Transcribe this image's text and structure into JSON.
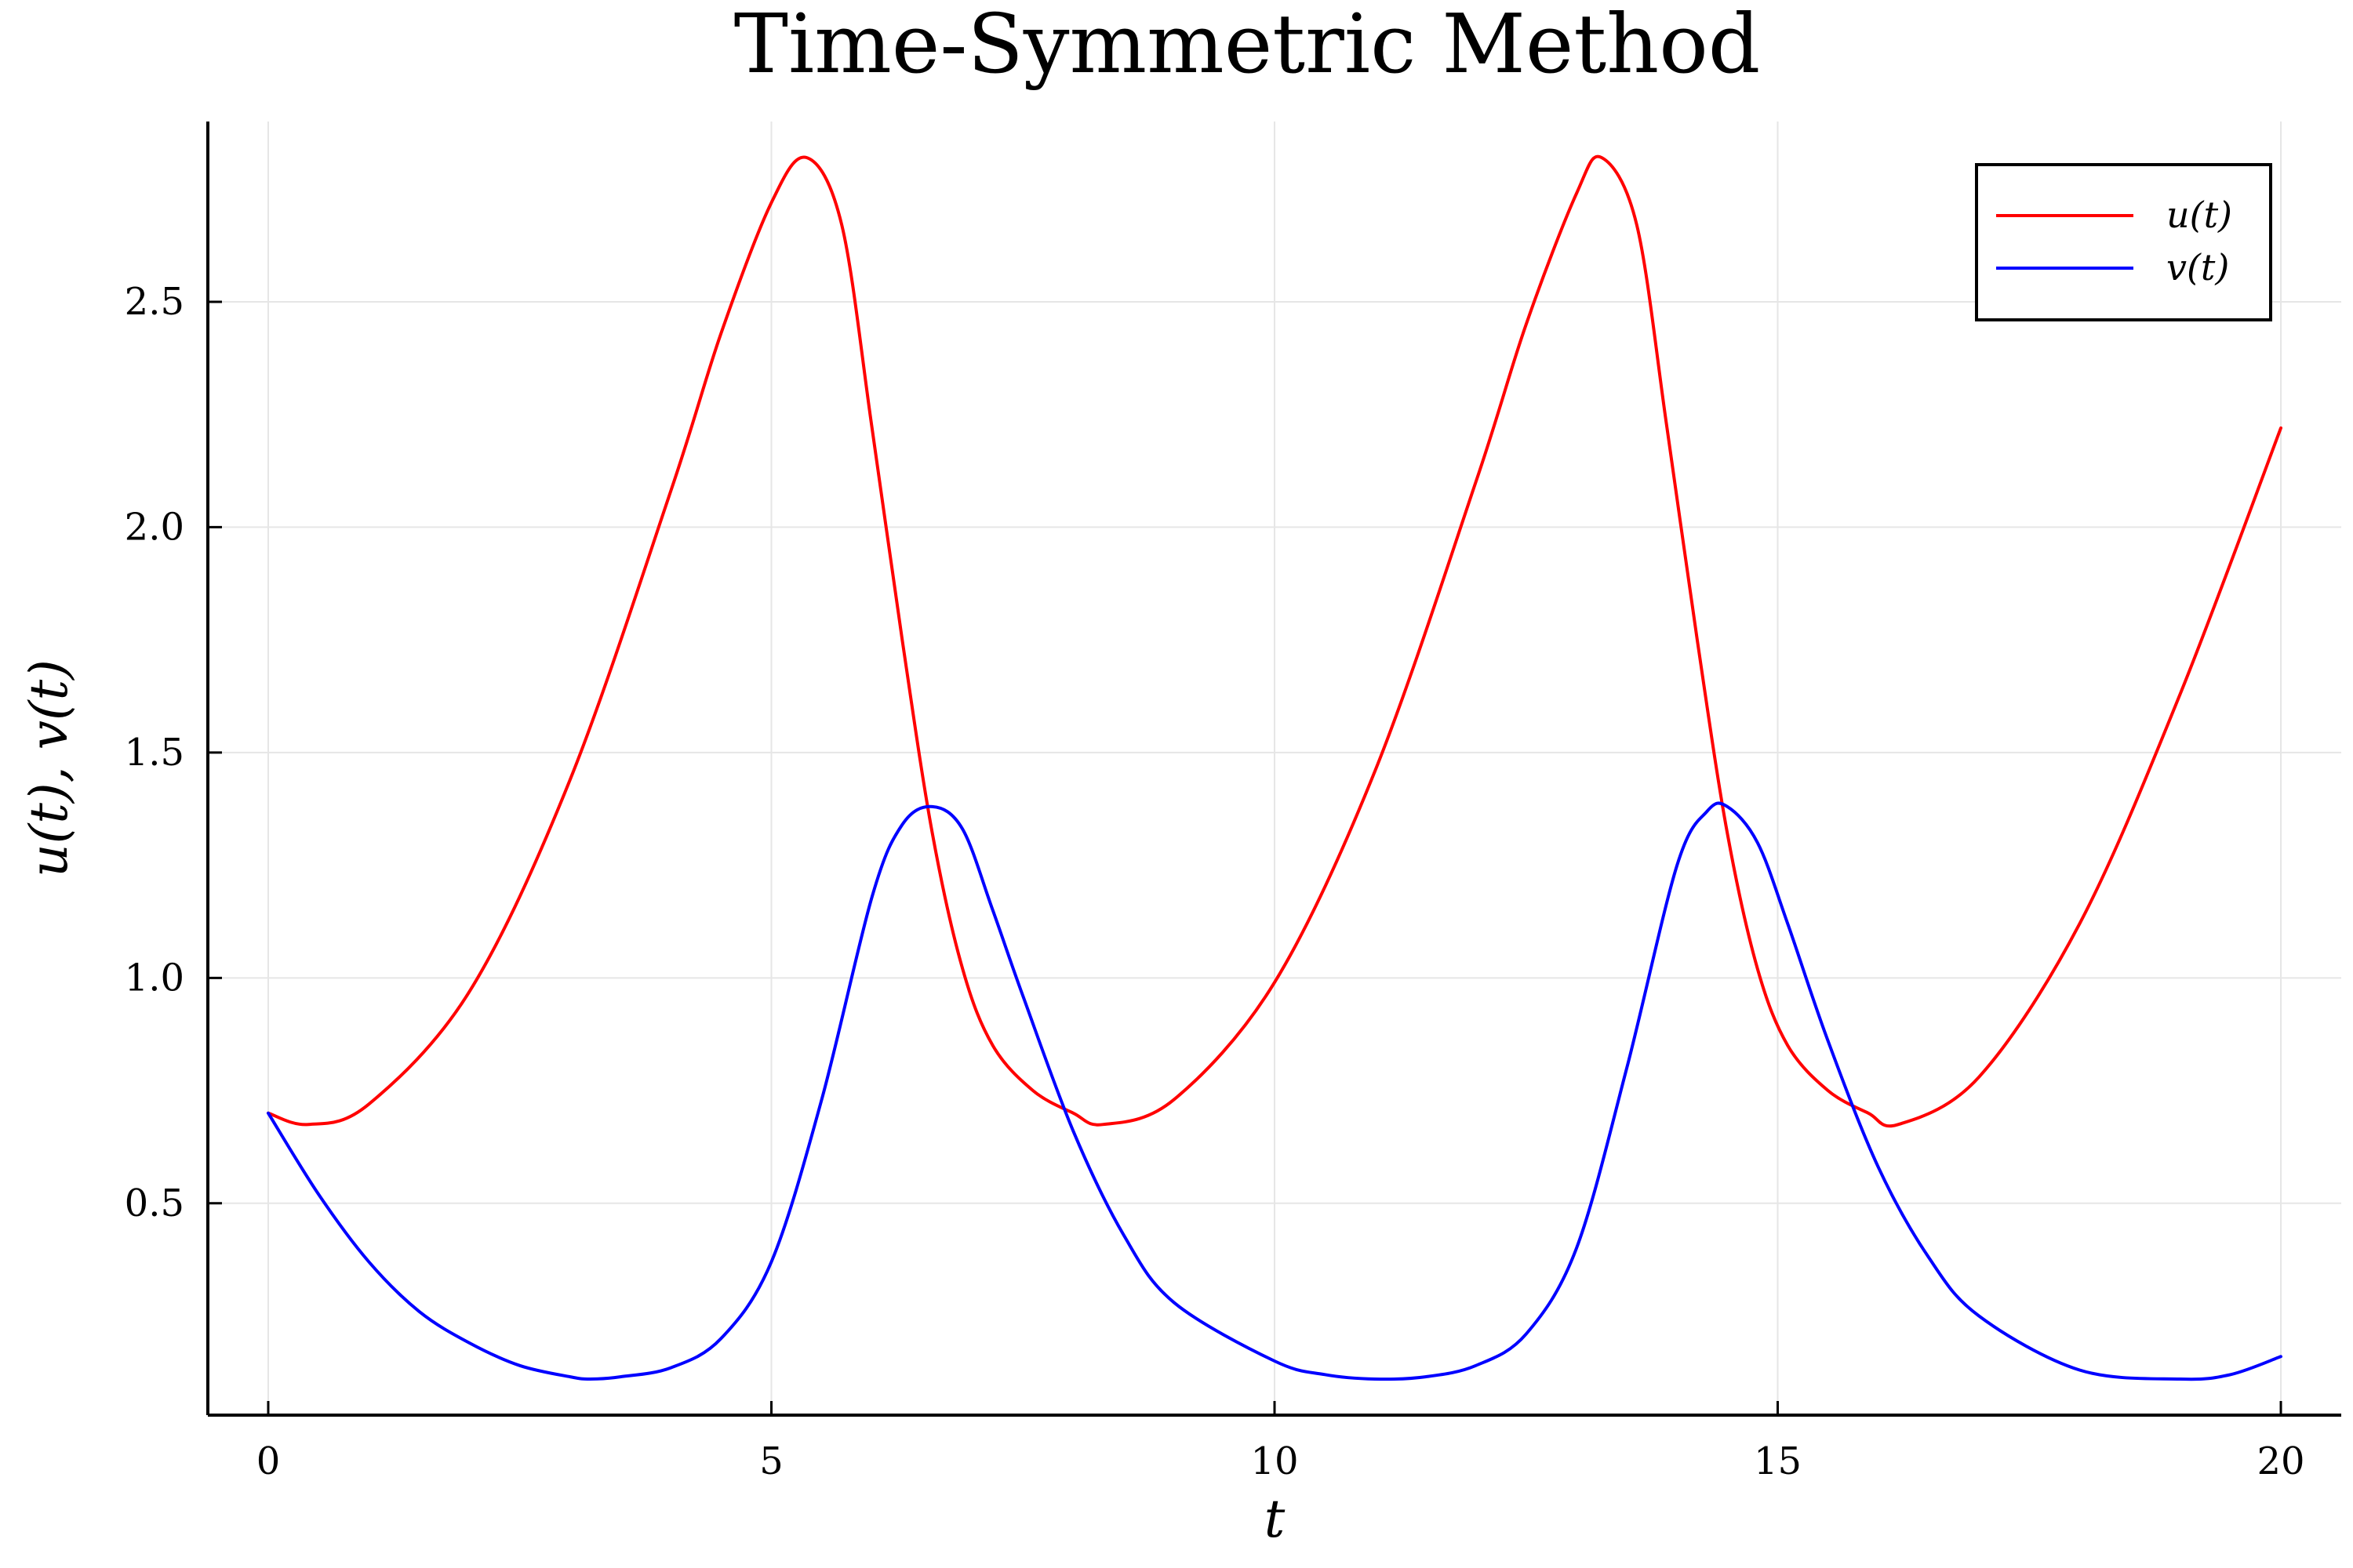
{
  "chart_data": {
    "type": "line",
    "title": "Time-Symmetric Method",
    "xlabel": "t",
    "ylabel": "u(t), v(t)",
    "xlim": [
      -0.6,
      20.6
    ],
    "ylim": [
      0.03,
      2.9
    ],
    "xticks": [
      0,
      5,
      10,
      15,
      20
    ],
    "xtick_labels": [
      "0",
      "5",
      "10",
      "15",
      "20"
    ],
    "yticks": [
      0.5,
      1.0,
      1.5,
      2.0,
      2.5
    ],
    "ytick_labels": [
      "0.5",
      "1.0",
      "1.5",
      "2.0",
      "2.5"
    ],
    "grid": true,
    "legend_position": "top-right",
    "series": [
      {
        "name": "u(t)",
        "color": "#ff0000",
        "x": [
          0,
          0.4,
          1,
          2,
          3,
          4,
          4.5,
          5,
          5.35,
          5.7,
          6,
          6.3,
          6.6,
          6.9,
          7.2,
          7.6,
          8.0,
          8.3,
          9,
          10,
          11,
          12,
          12.5,
          13,
          13.25,
          13.6,
          13.9,
          14.2,
          14.5,
          14.8,
          15.1,
          15.5,
          15.9,
          16.2,
          17,
          18,
          19,
          20
        ],
        "y": [
          0.7,
          0.675,
          0.72,
          0.97,
          1.44,
          2.08,
          2.43,
          2.72,
          2.82,
          2.67,
          2.22,
          1.75,
          1.32,
          1.02,
          0.85,
          0.75,
          0.7,
          0.675,
          0.73,
          0.99,
          1.46,
          2.1,
          2.45,
          2.74,
          2.82,
          2.67,
          2.22,
          1.75,
          1.32,
          1.02,
          0.85,
          0.75,
          0.7,
          0.675,
          0.78,
          1.12,
          1.63,
          2.22
        ]
      },
      {
        "name": "v(t)",
        "color": "#0000ff",
        "x": [
          0,
          0.5,
          1,
          1.5,
          2,
          2.5,
          3,
          3.2,
          3.5,
          4,
          4.5,
          5,
          5.5,
          6,
          6.3,
          6.6,
          6.9,
          7.2,
          7.5,
          8,
          8.5,
          9,
          10,
          10.5,
          11,
          11.5,
          12,
          12.5,
          13,
          13.5,
          14,
          14.3,
          14.5,
          14.8,
          15.1,
          15.5,
          16,
          16.5,
          17,
          18,
          19,
          19.5,
          20
        ],
        "y": [
          0.7,
          0.52,
          0.37,
          0.26,
          0.19,
          0.14,
          0.115,
          0.11,
          0.115,
          0.135,
          0.2,
          0.37,
          0.73,
          1.18,
          1.34,
          1.38,
          1.33,
          1.15,
          0.96,
          0.66,
          0.43,
          0.28,
          0.15,
          0.12,
          0.11,
          0.115,
          0.14,
          0.21,
          0.4,
          0.8,
          1.25,
          1.37,
          1.38,
          1.3,
          1.12,
          0.86,
          0.58,
          0.38,
          0.25,
          0.13,
          0.11,
          0.12,
          0.16
        ]
      }
    ]
  }
}
